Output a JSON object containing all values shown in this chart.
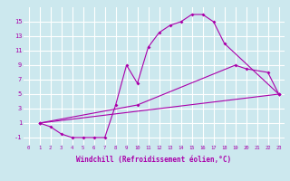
{
  "bg_color": "#cce8ee",
  "line_color": "#aa00aa",
  "grid_color": "#ffffff",
  "xlabel": "Windchill (Refroidissement éolien,°C)",
  "ylabel_ticks": [
    -1,
    1,
    3,
    5,
    7,
    9,
    11,
    13,
    15
  ],
  "xticks": [
    0,
    1,
    2,
    3,
    4,
    5,
    6,
    7,
    8,
    9,
    10,
    11,
    12,
    13,
    14,
    15,
    16,
    17,
    18,
    19,
    20,
    21,
    22,
    23
  ],
  "xlim": [
    -0.5,
    23.5
  ],
  "ylim": [
    -2.0,
    17.0
  ],
  "line1_x": [
    1,
    2,
    3,
    4,
    5,
    6,
    7,
    8,
    9,
    10,
    11,
    12,
    13,
    14,
    15,
    16,
    17,
    18,
    23
  ],
  "line1_y": [
    1,
    0.5,
    -0.5,
    -1,
    -1,
    -1,
    -1,
    3.5,
    9,
    6.5,
    11.5,
    13.5,
    14.5,
    15.0,
    16.0,
    16.0,
    15.0,
    12.0,
    5.0
  ],
  "line2_x": [
    1,
    10,
    19,
    20,
    22,
    23
  ],
  "line2_y": [
    1,
    3.5,
    9.0,
    8.5,
    8.0,
    5.0
  ],
  "line3_x": [
    1,
    23
  ],
  "line3_y": [
    1,
    5.0
  ],
  "title_fontsize": 6,
  "tick_fontsize_x": 4.0,
  "tick_fontsize_y": 5.0,
  "xlabel_fontsize": 5.5,
  "linewidth": 0.8,
  "markersize": 2.0
}
